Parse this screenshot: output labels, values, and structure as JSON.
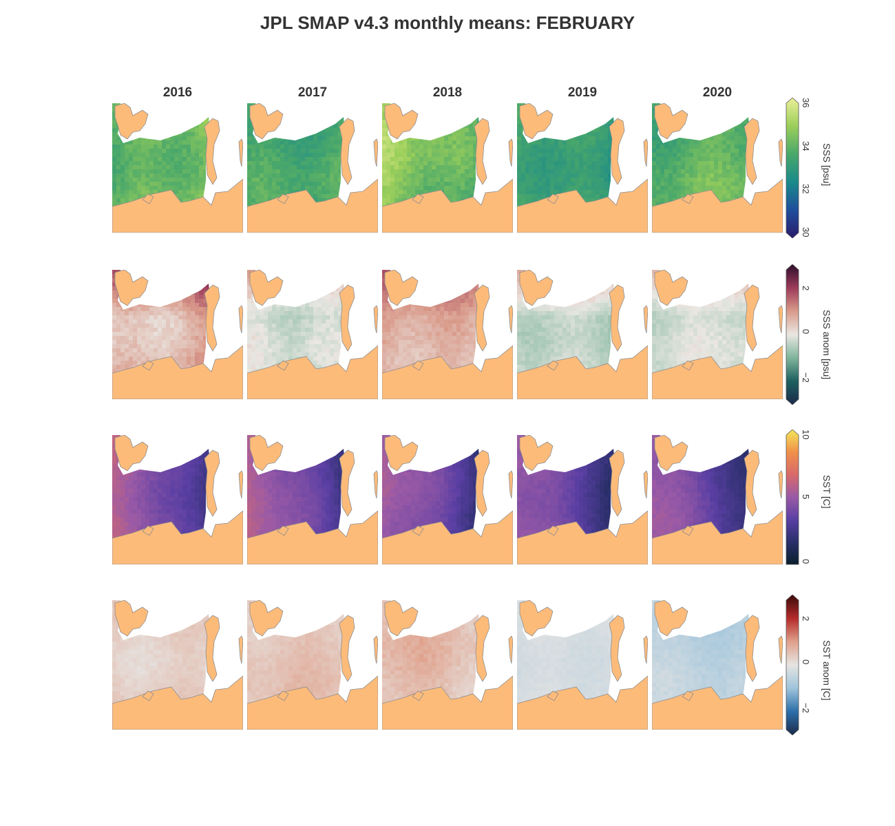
{
  "title": "JPL SMAP v4.3 monthly means: FEBRUARY",
  "years": [
    "2016",
    "2017",
    "2018",
    "2019",
    "2020"
  ],
  "colors": {
    "land": "#fdbb7a",
    "coast": "#8c8c8c",
    "nodata": "#ffffff"
  },
  "rows": [
    {
      "key": "sss",
      "colorbar": {
        "label": "SSS [psu]",
        "min": 30,
        "max": 36,
        "ticks": [
          "30",
          "32",
          "34",
          "36"
        ],
        "stops": [
          "#2b1a6b",
          "#1f4e9c",
          "#1a8a8a",
          "#4aa86a",
          "#9ccf5a",
          "#ecef9a"
        ],
        "extend": "both"
      },
      "panels": [
        {
          "year": "2016",
          "base": 0.82,
          "west": -0.25,
          "east": -0.05,
          "spread": 0.08
        },
        {
          "year": "2017",
          "base": 0.68,
          "west": -0.15,
          "east": -0.12,
          "spread": 0.08
        },
        {
          "year": "2018",
          "base": 0.74,
          "west": 0.05,
          "east": -0.35,
          "spread": 0.09
        },
        {
          "year": "2019",
          "base": 0.65,
          "west": -0.1,
          "east": -0.3,
          "spread": 0.07
        },
        {
          "year": "2020",
          "base": 0.7,
          "west": -0.1,
          "east": 0.0,
          "spread": 0.08
        }
      ]
    },
    {
      "key": "sss_anom",
      "colorbar": {
        "label": "SSS anom [psu]",
        "min": -3,
        "max": 3,
        "ticks": [
          "−2",
          "0",
          "2"
        ],
        "stops": [
          "#1d2a4a",
          "#1d5f5f",
          "#7fb59b",
          "#eae7e3",
          "#d99a8a",
          "#9c3a5a",
          "#2e0f2e"
        ],
        "extend": "both"
      },
      "panels": [
        {
          "year": "2016",
          "base": 0.64,
          "west": -0.1,
          "east": 0.08,
          "spread": 0.06
        },
        {
          "year": "2017",
          "base": 0.45,
          "west": 0.02,
          "east": -0.04,
          "spread": 0.05
        },
        {
          "year": "2018",
          "base": 0.58,
          "west": 0.06,
          "east": -0.02,
          "spread": 0.05
        },
        {
          "year": "2019",
          "base": 0.45,
          "west": 0.0,
          "east": -0.04,
          "spread": 0.04
        },
        {
          "year": "2020",
          "base": 0.48,
          "west": -0.04,
          "east": 0.02,
          "spread": 0.04
        }
      ]
    },
    {
      "key": "sst",
      "colorbar": {
        "label": "SST [C]",
        "min": 0,
        "max": 10,
        "ticks": [
          "0",
          "5",
          "10"
        ],
        "stops": [
          "#0b1f2e",
          "#2a2f6a",
          "#5a3fa3",
          "#9a5aa6",
          "#d86a6a",
          "#f0904a",
          "#f4e85a"
        ],
        "extend": "max"
      },
      "panels": [
        {
          "year": "2016",
          "base": 0.3,
          "west": 0.32,
          "east": -0.28,
          "spread": 0.04
        },
        {
          "year": "2017",
          "base": 0.3,
          "west": 0.32,
          "east": -0.28,
          "spread": 0.04
        },
        {
          "year": "2018",
          "base": 0.28,
          "west": 0.32,
          "east": -0.26,
          "spread": 0.04
        },
        {
          "year": "2019",
          "base": 0.26,
          "west": 0.3,
          "east": -0.26,
          "spread": 0.04
        },
        {
          "year": "2020",
          "base": 0.26,
          "west": 0.3,
          "east": -0.26,
          "spread": 0.04
        }
      ]
    },
    {
      "key": "sst_anom",
      "colorbar": {
        "label": "SST anom [C]",
        "min": -3,
        "max": 3,
        "ticks": [
          "−2",
          "0",
          "2"
        ],
        "stops": [
          "#1c2a4a",
          "#2b6ea8",
          "#9ec4dc",
          "#e6e4e2",
          "#e0a08a",
          "#b42a2a",
          "#3a0a0a"
        ],
        "extend": "both"
      },
      "panels": [
        {
          "year": "2016",
          "base": 0.55,
          "west": 0.01,
          "east": 0.0,
          "spread": 0.03
        },
        {
          "year": "2017",
          "base": 0.57,
          "west": 0.01,
          "east": 0.02,
          "spread": 0.03
        },
        {
          "year": "2018",
          "base": 0.58,
          "west": 0.04,
          "east": -0.03,
          "spread": 0.04
        },
        {
          "year": "2019",
          "base": 0.46,
          "west": 0.0,
          "east": 0.02,
          "spread": 0.02
        },
        {
          "year": "2020",
          "base": 0.4,
          "west": 0.01,
          "east": -0.02,
          "spread": 0.03
        }
      ]
    }
  ]
}
